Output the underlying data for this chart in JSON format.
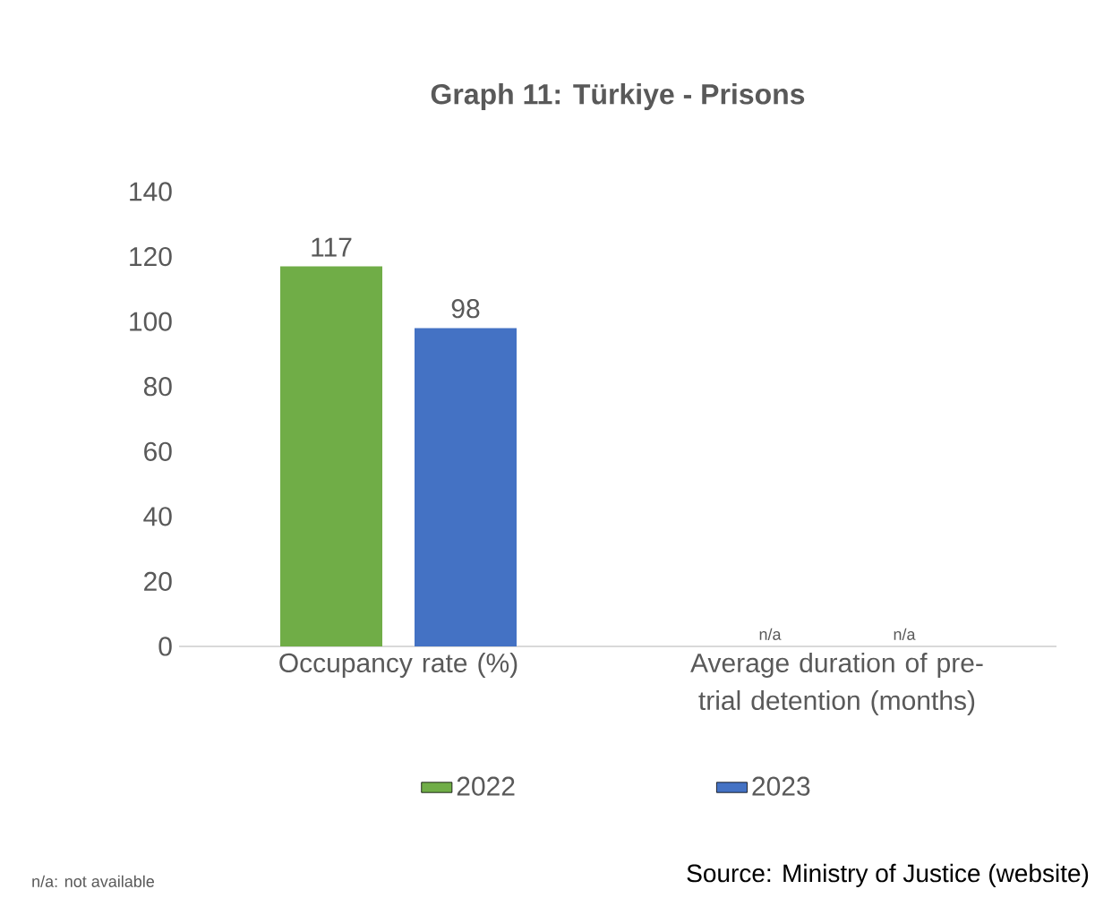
{
  "chart_data": {
    "type": "bar",
    "title": "Graph 11: Türkiye  - Prisons",
    "categories": [
      "Occupancy rate (%)",
      "Average duration of pre-trial detention (months)"
    ],
    "series": [
      {
        "name": "2022",
        "color": "#70ad47",
        "values": [
          117,
          null
        ],
        "value_labels": [
          "117",
          "n/a"
        ]
      },
      {
        "name": "2023",
        "color": "#4472c4",
        "values": [
          98,
          null
        ],
        "value_labels": [
          "98",
          "n/a"
        ]
      }
    ],
    "ylim": [
      0,
      140
    ],
    "yticks": [
      0,
      20,
      40,
      60,
      80,
      100,
      120,
      140
    ],
    "legend": "bottom",
    "annotations": [
      "n/a:  not available",
      "Source: Ministry of Justice (website)"
    ]
  }
}
